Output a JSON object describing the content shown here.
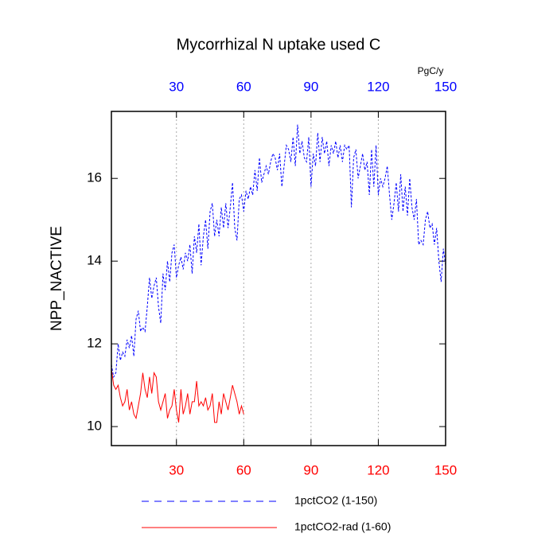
{
  "chart_data": {
    "type": "line",
    "title": "Mycorrhizal N uptake used C",
    "y_label": "NPP_NACTIVE",
    "x2_label": "PgC/y",
    "x": [
      1,
      2,
      3,
      4,
      5,
      6,
      7,
      8,
      9,
      10,
      11,
      12,
      13,
      14,
      15,
      16,
      17,
      18,
      19,
      20,
      21,
      22,
      23,
      24,
      25,
      26,
      27,
      28,
      29,
      30,
      31,
      32,
      33,
      34,
      35,
      36,
      37,
      38,
      39,
      40,
      41,
      42,
      43,
      44,
      45,
      46,
      47,
      48,
      49,
      50,
      51,
      52,
      53,
      54,
      55,
      56,
      57,
      58,
      59,
      60,
      61,
      62,
      63,
      64,
      65,
      66,
      67,
      68,
      69,
      70,
      71,
      72,
      73,
      74,
      75,
      76,
      77,
      78,
      79,
      80,
      81,
      82,
      83,
      84,
      85,
      86,
      87,
      88,
      89,
      90,
      91,
      92,
      93,
      94,
      95,
      96,
      97,
      98,
      99,
      100,
      101,
      102,
      103,
      104,
      105,
      106,
      107,
      108,
      109,
      110,
      111,
      112,
      113,
      114,
      115,
      116,
      117,
      118,
      119,
      120,
      121,
      122,
      123,
      124,
      125,
      126,
      127,
      128,
      129,
      130,
      131,
      132,
      133,
      134,
      135,
      136,
      137,
      138,
      139,
      140,
      141,
      142,
      143,
      144,
      145,
      146,
      147,
      148,
      149,
      150
    ],
    "series": [
      {
        "name": "1pctCO2 (1-150)",
        "color": "#0000ff",
        "dash": true,
        "values": [
          11.5,
          11.2,
          11.3,
          12.0,
          11.6,
          11.8,
          11.7,
          12.1,
          11.9,
          12.2,
          11.7,
          12.6,
          12.8,
          12.3,
          12.4,
          12.3,
          12.9,
          13.6,
          13.1,
          13.4,
          13.6,
          12.9,
          12.5,
          13.7,
          13.3,
          14.0,
          13.5,
          14.2,
          14.4,
          13.6,
          13.9,
          14.1,
          13.8,
          14.2,
          14.0,
          14.4,
          13.7,
          14.6,
          14.2,
          14.9,
          13.9,
          14.6,
          15.0,
          14.3,
          15.2,
          15.4,
          14.6,
          15.0,
          14.6,
          15.3,
          14.8,
          15.4,
          14.8,
          15.3,
          15.9,
          14.8,
          14.5,
          15.5,
          15.6,
          15.2,
          15.7,
          15.5,
          15.8,
          15.6,
          16.2,
          15.7,
          16.5,
          15.9,
          16.1,
          16.3,
          16.1,
          16.4,
          16.6,
          16.5,
          16.2,
          16.6,
          15.8,
          16.3,
          16.8,
          16.7,
          16.4,
          17.0,
          16.3,
          17.3,
          16.6,
          16.9,
          16.5,
          16.4,
          17.0,
          15.8,
          16.6,
          16.3,
          17.1,
          16.4,
          17.0,
          16.6,
          16.9,
          16.3,
          16.8,
          16.6,
          16.9,
          16.5,
          16.8,
          16.4,
          16.8,
          16.7,
          16.8,
          15.3,
          16.5,
          16.7,
          16.0,
          16.3,
          16.6,
          16.2,
          16.4,
          15.6,
          16.7,
          15.8,
          16.8,
          15.6,
          16.0,
          15.8,
          16.0,
          16.3,
          15.6,
          15.0,
          15.4,
          15.9,
          15.2,
          16.1,
          15.2,
          15.8,
          15.1,
          16.0,
          15.3,
          15.0,
          15.5,
          14.4,
          14.5,
          14.4,
          15.0,
          15.2,
          14.8,
          14.9,
          14.4,
          14.8,
          14.0,
          13.5,
          14.3,
          13.9
        ]
      },
      {
        "name": "1pctCO2-rad (1-60)",
        "color": "#ff0000",
        "dash": false,
        "values": [
          11.4,
          11.0,
          10.9,
          11.0,
          10.7,
          10.5,
          10.6,
          10.9,
          10.4,
          10.6,
          10.3,
          10.2,
          10.5,
          10.8,
          11.3,
          10.9,
          10.7,
          11.2,
          10.8,
          11.3,
          11.2,
          10.6,
          10.4,
          10.6,
          10.8,
          10.2,
          10.4,
          10.5,
          10.9,
          10.4,
          10.1,
          10.9,
          10.3,
          10.5,
          10.8,
          10.3,
          10.6,
          10.6,
          11.1,
          10.5,
          10.6,
          10.5,
          10.7,
          10.4,
          10.5,
          10.8,
          10.1,
          10.1,
          10.6,
          10.3,
          10.8,
          10.6,
          10.4,
          10.7,
          11.0,
          10.8,
          10.6,
          10.3,
          10.5,
          10.3,
          null,
          null,
          null,
          null,
          null,
          null,
          null,
          null,
          null,
          null,
          null,
          null,
          null,
          null,
          null,
          null,
          null,
          null,
          null,
          null,
          null,
          null,
          null,
          null,
          null,
          null,
          null,
          null,
          null,
          null,
          null,
          null,
          null,
          null,
          null,
          null,
          null,
          null,
          null,
          null,
          null,
          null,
          null,
          null,
          null,
          null,
          null,
          null,
          null,
          null,
          null,
          null,
          null,
          null,
          null,
          null,
          null,
          null,
          null,
          null,
          null,
          null,
          null,
          null,
          null,
          null,
          null,
          null,
          null,
          null,
          null,
          null,
          null,
          null,
          null,
          null,
          null,
          null,
          null,
          null,
          null,
          null,
          null,
          null,
          null,
          null,
          null,
          null,
          null,
          null
        ]
      }
    ],
    "xlim": [
      1,
      150
    ],
    "xticks": [
      30,
      60,
      90,
      120,
      150
    ],
    "ylim": [
      9.54,
      17.62
    ],
    "yticks": [
      10,
      12,
      14,
      16
    ],
    "x_tick_label_color": "#ff0000",
    "x2_tick_label_color": "#0000ff",
    "grid": true,
    "grid_color": "#aaaaaa",
    "legend": "bottom"
  }
}
